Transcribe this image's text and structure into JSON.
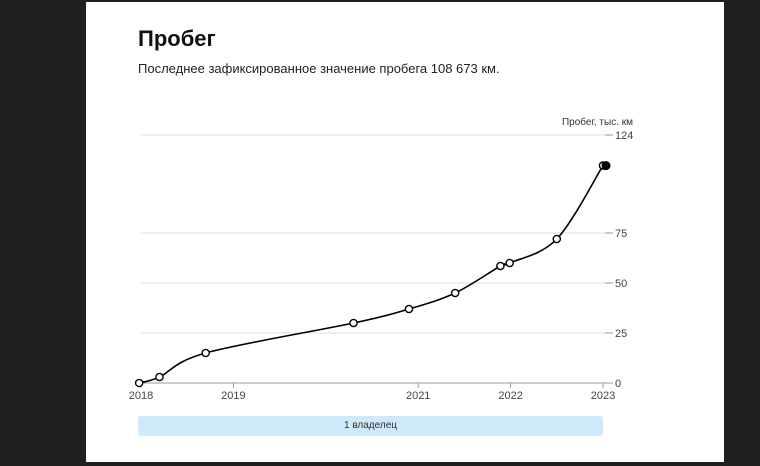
{
  "card": {
    "title": "Пробег",
    "subtitle": "Последнее зафиксированное значение пробега 108 673 км."
  },
  "owner_bar": {
    "label": "1 владелец"
  },
  "chart_data": {
    "type": "line",
    "ylabel": "Пробег, тыс. км",
    "ylim": [
      0,
      124
    ],
    "y_ticks": [
      "0",
      "25",
      "50",
      "75",
      "124"
    ],
    "y_tick_values": [
      0,
      25,
      50,
      75,
      124
    ],
    "x_ticks": [
      "2018",
      "2019",
      "2021",
      "2022",
      "2023"
    ],
    "x_tick_values": [
      2018.0,
      2019.0,
      2021.0,
      2022.0,
      2023.0
    ],
    "xlim": [
      2018.0,
      2023.0
    ],
    "grid": true,
    "series": [
      {
        "points": [
          {
            "x": 2017.98,
            "y": 0
          },
          {
            "x": 2018.2,
            "y": 3
          },
          {
            "x": 2018.7,
            "y": 15
          },
          {
            "x": 2020.3,
            "y": 30
          },
          {
            "x": 2020.9,
            "y": 37
          },
          {
            "x": 2021.4,
            "y": 45
          },
          {
            "x": 2021.89,
            "y": 58.5
          },
          {
            "x": 2021.99,
            "y": 60
          },
          {
            "x": 2022.5,
            "y": 72
          },
          {
            "x": 2023.0,
            "y": 108.7
          }
        ]
      }
    ],
    "color": "#000000"
  }
}
